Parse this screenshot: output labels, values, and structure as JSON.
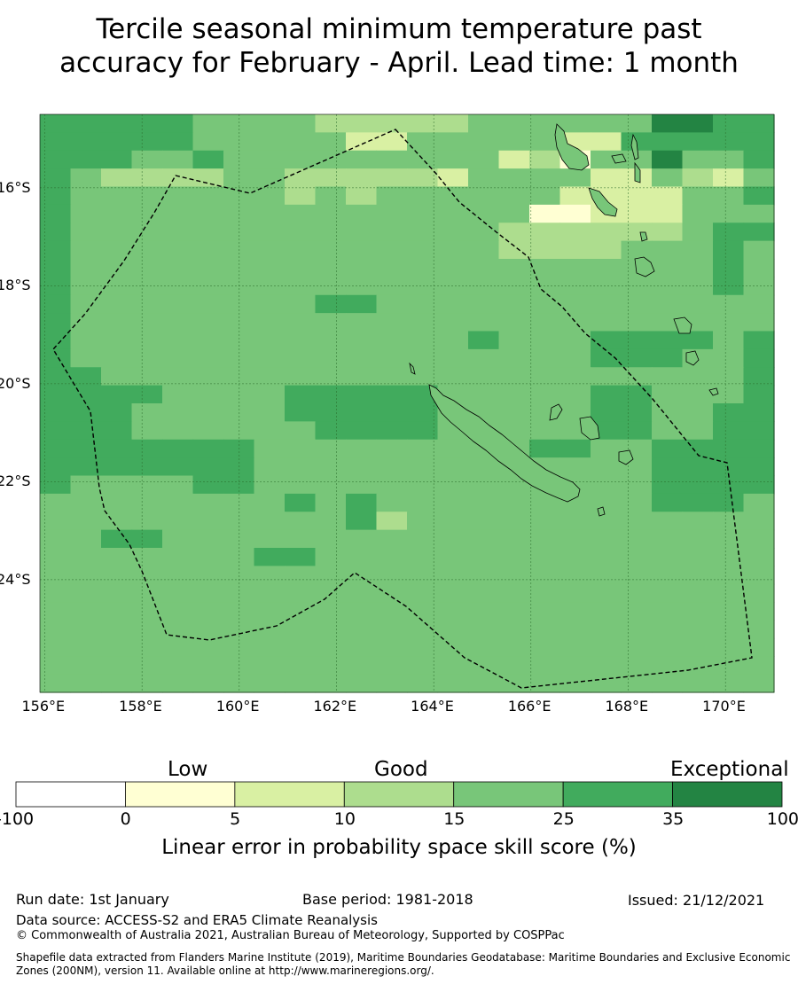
{
  "title": {
    "line1": "Tercile seasonal minimum temperature past",
    "line2": "accuracy for February - April. Lead time: 1 month"
  },
  "map": {
    "lat_labels": [
      "16°S",
      "18°S",
      "20°S",
      "22°S",
      "24°S"
    ],
    "lon_labels": [
      "156°E",
      "158°E",
      "160°E",
      "162°E",
      "164°E",
      "166°E",
      "168°E",
      "170°E"
    ],
    "lon_range": [
      155.9,
      171.0
    ],
    "lat_range": [
      -26.3,
      -14.5
    ],
    "grid_on": true,
    "colors": {
      "c0": "#ffffd3",
      "c1": "#d9f0a3",
      "c2": "#addd8e",
      "c3": "#78c679",
      "c4": "#41ab5d",
      "c5": "#238443"
    },
    "rows": [
      "444443333222223333335544",
      "444443333311333331144444",
      "444334333333333120335334",
      "432222332222213333113213",
      "433333332323333331111334",
      "433333333333333300111333",
      "433333333333333222222344",
      "433333333333333222233343",
      "433333333333333333333343",
      "433333333333333333333343",
      "433333333443333333333333",
      "433333333333333333333333",
      "433333333333334333444434",
      "433333333333333333444334",
      "443333333333333333333334",
      "444433334444433333443334",
      "444333334444433333443344",
      "444333333444433333443344",
      "444444433333333344334444",
      "444444433333333333334444",
      "433334433333333333334444",
      "333333334343333333334443",
      "333333333342333333333333",
      "334433333333333333333333",
      "333333344333333333333333",
      "333333333333333333333333",
      "333333333333333333333333",
      "333333333333333333333333",
      "333333333333333333333333",
      "333333333333333333333333",
      "333333333333333333333333",
      "333333333333333333333333"
    ]
  },
  "colorbar": {
    "categories": [
      "Low",
      "Good",
      "Exceptional"
    ],
    "ticks": [
      "-100",
      "0",
      "5",
      "10",
      "15",
      "25",
      "35",
      "100"
    ],
    "bins": [
      {
        "from": -100,
        "to": 0,
        "color": "#ffffff"
      },
      {
        "from": 0,
        "to": 5,
        "color": "#ffffd3"
      },
      {
        "from": 5,
        "to": 10,
        "color": "#d9f0a3"
      },
      {
        "from": 10,
        "to": 15,
        "color": "#addd8e"
      },
      {
        "from": 15,
        "to": 25,
        "color": "#78c679"
      },
      {
        "from": 25,
        "to": 35,
        "color": "#41ab5d"
      },
      {
        "from": 35,
        "to": 100,
        "color": "#238443"
      }
    ],
    "label": "Linear error in probability space skill score (%)"
  },
  "footer": {
    "run_date": "Run date: 1st January",
    "base_period": "Base period: 1981-2018",
    "issued": "Issued: 21/12/2021",
    "data_source": "Data source: ACCESS-S2 and ERA5 Climate Reanalysis",
    "copyright": "© Commonwealth of Australia 2021, Australian Bureau of Meteorology, Supported by COSPPac",
    "shapefile": "Shapefile data extracted from Flanders Marine Institute (2019), Maritime Boundaries Geodatabase: Maritime Boundaries and Exclusive Economic Zones (200NM), version 11. Available online at http://www.marineregions.org/."
  }
}
